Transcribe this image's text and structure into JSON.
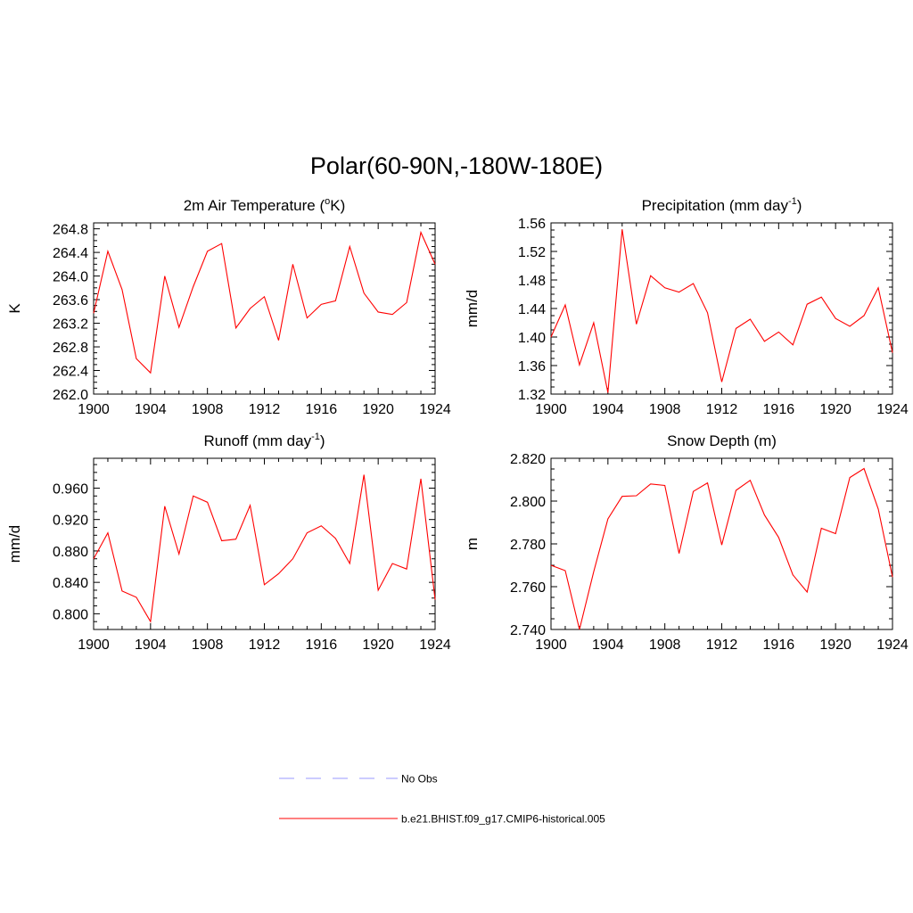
{
  "page_title": "Polar(60-90N,-180W-180E)",
  "chart_data": [
    {
      "type": "line",
      "title": "2m Air Temperature (",
      "title_sup": "o",
      "title_end": "K)",
      "ylabel": "K",
      "x": [
        1900,
        1901,
        1902,
        1903,
        1904,
        1905,
        1906,
        1907,
        1908,
        1909,
        1910,
        1911,
        1912,
        1913,
        1914,
        1915,
        1916,
        1917,
        1918,
        1919,
        1920,
        1921,
        1922,
        1923,
        1924
      ],
      "xlim": [
        1900,
        1924
      ],
      "xticks": [
        "1900",
        "1904",
        "1908",
        "1912",
        "1916",
        "1920",
        "1924"
      ],
      "ylim": [
        262.0,
        264.9
      ],
      "yticks": [
        "262.0",
        "262.4",
        "262.8",
        "263.2",
        "263.6",
        "264.0",
        "264.4",
        "264.8"
      ],
      "series": [
        {
          "values": [
            263.37,
            264.42,
            263.77,
            262.6,
            262.36,
            264.0,
            263.13,
            263.82,
            264.42,
            264.55,
            263.12,
            263.45,
            263.65,
            262.91,
            264.2,
            263.29,
            263.52,
            263.58,
            264.5,
            263.71,
            263.39,
            263.35,
            263.55,
            264.74,
            264.2
          ],
          "color": "#ff0000"
        }
      ]
    },
    {
      "type": "line",
      "title": "Precipitation (mm day",
      "title_sup": "-1",
      "title_end": ")",
      "ylabel": "mm/d",
      "x": [
        1900,
        1901,
        1902,
        1903,
        1904,
        1905,
        1906,
        1907,
        1908,
        1909,
        1910,
        1911,
        1912,
        1913,
        1914,
        1915,
        1916,
        1917,
        1918,
        1919,
        1920,
        1921,
        1922,
        1923,
        1924
      ],
      "xlim": [
        1900,
        1924
      ],
      "xticks": [
        "1900",
        "1904",
        "1908",
        "1912",
        "1916",
        "1920",
        "1924"
      ],
      "ylim": [
        1.32,
        1.56
      ],
      "yticks": [
        "1.32",
        "1.36",
        "1.40",
        "1.44",
        "1.48",
        "1.52",
        "1.56"
      ],
      "series": [
        {
          "values": [
            1.4,
            1.445,
            1.361,
            1.42,
            1.322,
            1.551,
            1.418,
            1.486,
            1.469,
            1.463,
            1.475,
            1.434,
            1.337,
            1.412,
            1.425,
            1.394,
            1.407,
            1.389,
            1.446,
            1.456,
            1.426,
            1.415,
            1.43,
            1.469,
            1.378
          ],
          "color": "#ff0000"
        }
      ]
    },
    {
      "type": "line",
      "title": "Runoff (mm day",
      "title_sup": "-1",
      "title_end": ")",
      "ylabel": "mm/d",
      "x": [
        1900,
        1901,
        1902,
        1903,
        1904,
        1905,
        1906,
        1907,
        1908,
        1909,
        1910,
        1911,
        1912,
        1913,
        1914,
        1915,
        1916,
        1917,
        1918,
        1919,
        1920,
        1921,
        1922,
        1923,
        1924
      ],
      "xlim": [
        1900,
        1924
      ],
      "xticks": [
        "1900",
        "1904",
        "1908",
        "1912",
        "1916",
        "1920",
        "1924"
      ],
      "ylim": [
        0.78,
        0.998
      ],
      "yticks": [
        "0.800",
        "0.840",
        "0.880",
        "0.920",
        "0.960"
      ],
      "series": [
        {
          "values": [
            0.87,
            0.903,
            0.829,
            0.821,
            0.79,
            0.937,
            0.876,
            0.95,
            0.942,
            0.893,
            0.895,
            0.938,
            0.837,
            0.851,
            0.87,
            0.903,
            0.912,
            0.896,
            0.864,
            0.977,
            0.83,
            0.864,
            0.857,
            0.972,
            0.818
          ],
          "color": "#ff0000"
        }
      ]
    },
    {
      "type": "line",
      "title": "Snow Depth (m)",
      "title_sup": "",
      "title_end": "",
      "ylabel": "m",
      "x": [
        1900,
        1901,
        1902,
        1903,
        1904,
        1905,
        1906,
        1907,
        1908,
        1909,
        1910,
        1911,
        1912,
        1913,
        1914,
        1915,
        1916,
        1917,
        1918,
        1919,
        1920,
        1921,
        1922,
        1923,
        1924
      ],
      "xlim": [
        1900,
        1924
      ],
      "xticks": [
        "1900",
        "1904",
        "1908",
        "1912",
        "1916",
        "1920",
        "1924"
      ],
      "ylim": [
        2.74,
        2.82
      ],
      "yticks": [
        "2.740",
        "2.760",
        "2.780",
        "2.800",
        "2.820"
      ],
      "series": [
        {
          "values": [
            2.77,
            2.7675,
            2.74,
            2.767,
            2.7917,
            2.8022,
            2.8025,
            2.808,
            2.8073,
            2.7755,
            2.8045,
            2.8085,
            2.7795,
            2.805,
            2.8097,
            2.7935,
            2.783,
            2.7655,
            2.7575,
            2.7873,
            2.7848,
            2.811,
            2.8152,
            2.7963,
            2.7645
          ],
          "color": "#ff0000"
        }
      ]
    }
  ],
  "legend": [
    {
      "label": "No Obs",
      "color": "#9999ff",
      "dashed": true
    },
    {
      "label": "b.e21.BHIST.f09_g17.CMIP6-historical.005",
      "color": "#ff0000",
      "dashed": false
    }
  ]
}
